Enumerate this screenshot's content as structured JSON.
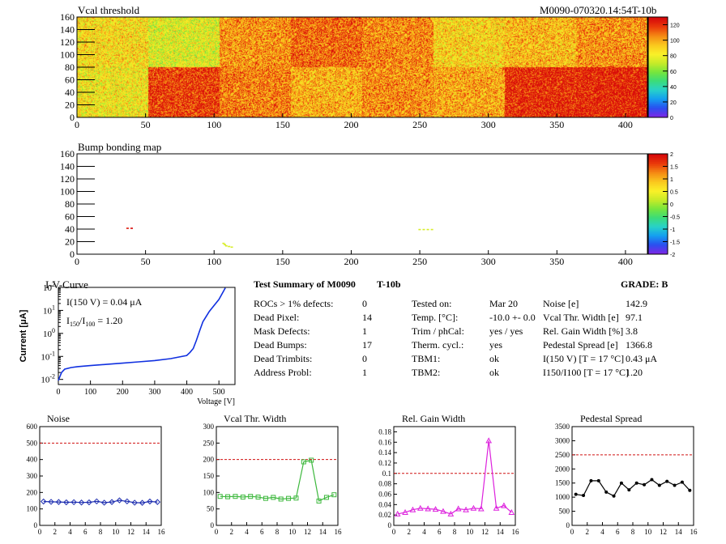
{
  "header": {
    "module_id": "M0090-070320.14:54T-10b"
  },
  "chart_data": [
    {
      "type": "heatmap",
      "title": "Vcal threshold",
      "x_ticks": [
        0,
        50,
        100,
        150,
        200,
        250,
        300,
        350,
        400
      ],
      "y_ticks": [
        0,
        20,
        40,
        60,
        80,
        100,
        120,
        140,
        160
      ],
      "xlim": [
        0,
        416
      ],
      "ylim": [
        0,
        160
      ],
      "roc_grid": {
        "cols": 8,
        "rows": 2,
        "cols_per_roc": 52,
        "rows_per_roc": 80
      },
      "roc_means_top": [
        88,
        78,
        104,
        112,
        106,
        90,
        96,
        104
      ],
      "roc_means_bottom": [
        84,
        120,
        108,
        98,
        105,
        100,
        124,
        126
      ],
      "colorbar_ticks": [
        0,
        20,
        40,
        60,
        80,
        100,
        120
      ],
      "zlim": [
        0,
        130
      ]
    },
    {
      "type": "heatmap",
      "title": "Bump bonding map",
      "x_ticks": [
        0,
        50,
        100,
        150,
        200,
        250,
        300,
        350,
        400
      ],
      "y_ticks": [
        0,
        20,
        40,
        60,
        80,
        100,
        120,
        140,
        160
      ],
      "xlim": [
        0,
        416
      ],
      "ylim": [
        0,
        160
      ],
      "points": [
        {
          "x": 36,
          "y": 41,
          "value": 1.9
        },
        {
          "x": 39,
          "y": 41,
          "value": 2.0
        },
        {
          "x": 106,
          "y": 17,
          "value": 0.3
        },
        {
          "x": 107,
          "y": 15,
          "value": 0.3
        },
        {
          "x": 108,
          "y": 13,
          "value": 0.3
        },
        {
          "x": 110,
          "y": 12,
          "value": 0.3
        },
        {
          "x": 112,
          "y": 11,
          "value": 0.3
        },
        {
          "x": 249,
          "y": 39,
          "value": 0.3
        },
        {
          "x": 252,
          "y": 39,
          "value": 0.3
        },
        {
          "x": 255,
          "y": 39,
          "value": 0.3
        },
        {
          "x": 258,
          "y": 39,
          "value": 0.3
        }
      ],
      "colorbar_ticks": [
        -2,
        -1.5,
        -1,
        -0.5,
        0,
        0.5,
        1,
        1.5,
        2
      ],
      "zlim": [
        -2,
        2
      ]
    },
    {
      "type": "line",
      "title": "I-V-Curve",
      "xlabel": "Voltage [V]",
      "ylabel": "Current [μA]",
      "log_y": true,
      "xlim": [
        0,
        550
      ],
      "ylim": [
        0.006,
        100
      ],
      "x_ticks": [
        0,
        100,
        200,
        300,
        400,
        500
      ],
      "y_tick_exponents": [
        -2,
        -1,
        0,
        1,
        2
      ],
      "x": [
        0,
        10,
        20,
        40,
        60,
        100,
        150,
        200,
        250,
        300,
        350,
        400,
        410,
        420,
        430,
        440,
        450,
        470,
        500,
        520
      ],
      "y": [
        0.009,
        0.02,
        0.028,
        0.033,
        0.036,
        0.04,
        0.045,
        0.051,
        0.058,
        0.066,
        0.08,
        0.11,
        0.15,
        0.22,
        0.5,
        1.3,
        3.2,
        9,
        30,
        95
      ],
      "annotations": [
        "I(150 V) = 0.04 μA",
        "I",
        "150",
        "/I",
        "100",
        " =  1.20"
      ]
    },
    {
      "type": "line",
      "title": "Noise",
      "xlim": [
        0,
        16
      ],
      "ylim": [
        0,
        600
      ],
      "x_ticks": [
        0,
        2,
        4,
        6,
        8,
        10,
        12,
        14,
        16
      ],
      "y_ticks": [
        0,
        100,
        200,
        300,
        400,
        500,
        600
      ],
      "threshold": 500,
      "x": [
        0.5,
        1.5,
        2.5,
        3.5,
        4.5,
        5.5,
        6.5,
        7.5,
        8.5,
        9.5,
        10.5,
        11.5,
        12.5,
        13.5,
        14.5,
        15.5
      ],
      "values": [
        145,
        143,
        142,
        140,
        141,
        139,
        140,
        146,
        138,
        142,
        152,
        146,
        138,
        137,
        145,
        142
      ],
      "color": "#1f2fb0"
    },
    {
      "type": "line",
      "title": "Vcal Thr. Width",
      "xlim": [
        0,
        16
      ],
      "ylim": [
        0,
        300
      ],
      "x_ticks": [
        0,
        2,
        4,
        6,
        8,
        10,
        12,
        14,
        16
      ],
      "y_ticks": [
        0,
        50,
        100,
        150,
        200,
        250,
        300
      ],
      "threshold": 200,
      "x": [
        0.5,
        1.5,
        2.5,
        3.5,
        4.5,
        5.5,
        6.5,
        7.5,
        8.5,
        9.5,
        10.5,
        11.5,
        12.5,
        13.5,
        14.5,
        15.5
      ],
      "values": [
        88,
        87,
        88,
        86,
        88,
        86,
        82,
        85,
        80,
        82,
        83,
        193,
        198,
        74,
        85,
        93
      ],
      "color": "#3db83d"
    },
    {
      "type": "line",
      "title": "Rel. Gain Width",
      "xlim": [
        0,
        16
      ],
      "ylim": [
        0,
        0.19
      ],
      "x_ticks": [
        0,
        2,
        4,
        6,
        8,
        10,
        12,
        14,
        16
      ],
      "y_ticks": [
        0,
        0.02,
        0.04,
        0.06,
        0.08,
        0.1,
        0.12,
        0.14,
        0.16,
        0.18
      ],
      "threshold": 0.1,
      "x": [
        0.5,
        1.5,
        2.5,
        3.5,
        4.5,
        5.5,
        6.5,
        7.5,
        8.5,
        9.5,
        10.5,
        11.5,
        12.5,
        13.5,
        14.5,
        15.5
      ],
      "values": [
        0.022,
        0.025,
        0.03,
        0.033,
        0.032,
        0.031,
        0.027,
        0.022,
        0.032,
        0.03,
        0.033,
        0.032,
        0.163,
        0.033,
        0.038,
        0.025
      ],
      "color": "#dd22dd"
    },
    {
      "type": "line",
      "title": "Pedestal Spread",
      "xlim": [
        0,
        16
      ],
      "ylim": [
        0,
        3500
      ],
      "x_ticks": [
        0,
        2,
        4,
        6,
        8,
        10,
        12,
        14,
        16
      ],
      "y_ticks": [
        0,
        500,
        1000,
        1500,
        2000,
        2500,
        3000,
        3500
      ],
      "threshold": 2500,
      "x": [
        0.5,
        1.5,
        2.5,
        3.5,
        4.5,
        5.5,
        6.5,
        7.5,
        8.5,
        9.5,
        10.5,
        11.5,
        12.5,
        13.5,
        14.5,
        15.5
      ],
      "values": [
        1100,
        1060,
        1580,
        1580,
        1180,
        1040,
        1500,
        1260,
        1500,
        1440,
        1620,
        1420,
        1560,
        1420,
        1530,
        1240
      ],
      "color": "#000000"
    }
  ],
  "summary": {
    "title": "Test Summary of M0090",
    "subtitle": "T-10b",
    "grade": "GRADE:  B",
    "col1": [
      {
        "label": "ROCs > 1% defects:",
        "value": "0"
      },
      {
        "label": "Dead Pixel:",
        "value": "14"
      },
      {
        "label": "Mask Defects:",
        "value": "1"
      },
      {
        "label": "Dead Bumps:",
        "value": "17"
      },
      {
        "label": "Dead Trimbits:",
        "value": "0"
      },
      {
        "label": "Address Probl:",
        "value": "1"
      }
    ],
    "col2": [
      {
        "label": "Tested on:",
        "value": "Mar 20"
      },
      {
        "label": "Temp. [°C]:",
        "value": "-10.0 +- 0.0"
      },
      {
        "label": "Trim / phCal:",
        "value": "yes / yes"
      },
      {
        "label": "Therm. cycl.:",
        "value": "yes"
      },
      {
        "label": "TBM1:",
        "value": "ok"
      },
      {
        "label": "TBM2:",
        "value": "ok"
      }
    ],
    "col3": [
      {
        "label": "Noise [e]",
        "value": "142.9"
      },
      {
        "label": "Vcal Thr. Width [e]",
        "value": "97.1"
      },
      {
        "label": "Rel. Gain Width [%]",
        "value": "3.8"
      },
      {
        "label": "Pedestal Spread [e]",
        "value": "1366.8"
      },
      {
        "label": "I(150 V) [T = 17 °C]",
        "value": "0.43 μA"
      },
      {
        "label": "I150/I100  [T = 17 °C]",
        "value": "1.20"
      }
    ]
  }
}
